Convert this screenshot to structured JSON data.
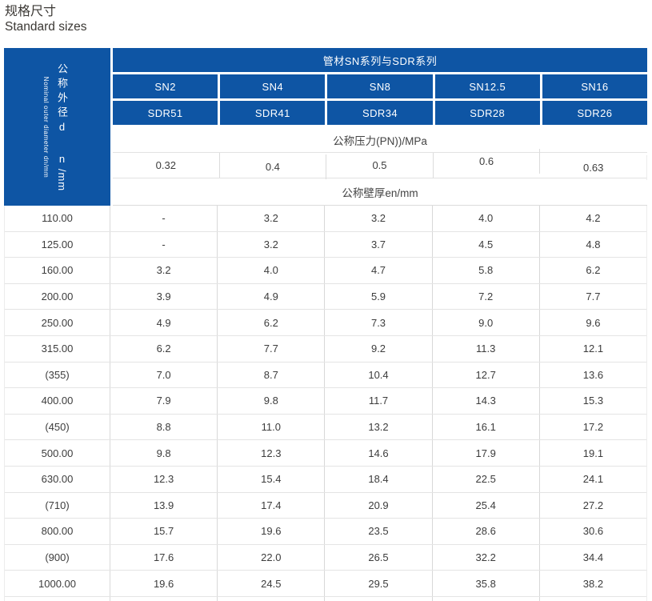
{
  "page": {
    "title_zh": "规格尺寸",
    "title_en": "Standard sizes"
  },
  "colors": {
    "header_blue": "#0e55a4",
    "grid_line": "#dcdcdc"
  },
  "table": {
    "group_header": "管材SN系列与SDR系列",
    "dn_header_zh": "公称外径d n",
    "dn_header_unit": "/mm",
    "dn_header_en": "Nominal outer diameter dn/mm",
    "sn_labels": [
      "SN2",
      "SN4",
      "SN8",
      "SN12.5",
      "SN16"
    ],
    "sdr_labels": [
      "SDR51",
      "SDR41",
      "SDR34",
      "SDR28",
      "SDR26"
    ],
    "pressure_header": "公称压力(PN))/MPa",
    "pressure_values": [
      "0.32",
      "0.4",
      "0.5",
      "0.6",
      "0.63"
    ],
    "thickness_header": "公称壁厚en/mm",
    "rows": [
      {
        "dn": "110.00",
        "values": [
          "-",
          "3.2",
          "3.2",
          "4.0",
          "4.2"
        ]
      },
      {
        "dn": "125.00",
        "values": [
          "-",
          "3.2",
          "3.7",
          "4.5",
          "4.8"
        ]
      },
      {
        "dn": "160.00",
        "values": [
          "3.2",
          "4.0",
          "4.7",
          "5.8",
          "6.2"
        ]
      },
      {
        "dn": "200.00",
        "values": [
          "3.9",
          "4.9",
          "5.9",
          "7.2",
          "7.7"
        ]
      },
      {
        "dn": "250.00",
        "values": [
          "4.9",
          "6.2",
          "7.3",
          "9.0",
          "9.6"
        ]
      },
      {
        "dn": "315.00",
        "values": [
          "6.2",
          "7.7",
          "9.2",
          "11.3",
          "12.1"
        ]
      },
      {
        "dn": "(355)",
        "values": [
          "7.0",
          "8.7",
          "10.4",
          "12.7",
          "13.6"
        ]
      },
      {
        "dn": "400.00",
        "values": [
          "7.9",
          "9.8",
          "11.7",
          "14.3",
          "15.3"
        ]
      },
      {
        "dn": "(450)",
        "values": [
          "8.8",
          "11.0",
          "13.2",
          "16.1",
          "17.2"
        ]
      },
      {
        "dn": "500.00",
        "values": [
          "9.8",
          "12.3",
          "14.6",
          "17.9",
          "19.1"
        ]
      },
      {
        "dn": "630.00",
        "values": [
          "12.3",
          "15.4",
          "18.4",
          "22.5",
          "24.1"
        ]
      },
      {
        "dn": "(710)",
        "values": [
          "13.9",
          "17.4",
          "20.9",
          "25.4",
          "27.2"
        ]
      },
      {
        "dn": "800.00",
        "values": [
          "15.7",
          "19.6",
          "23.5",
          "28.6",
          "30.6"
        ]
      },
      {
        "dn": "(900)",
        "values": [
          "17.6",
          "22.0",
          "26.5",
          "32.2",
          "34.4"
        ]
      },
      {
        "dn": "1000.00",
        "values": [
          "19.6",
          "24.5",
          "29.5",
          "35.8",
          "38.2"
        ]
      }
    ]
  }
}
